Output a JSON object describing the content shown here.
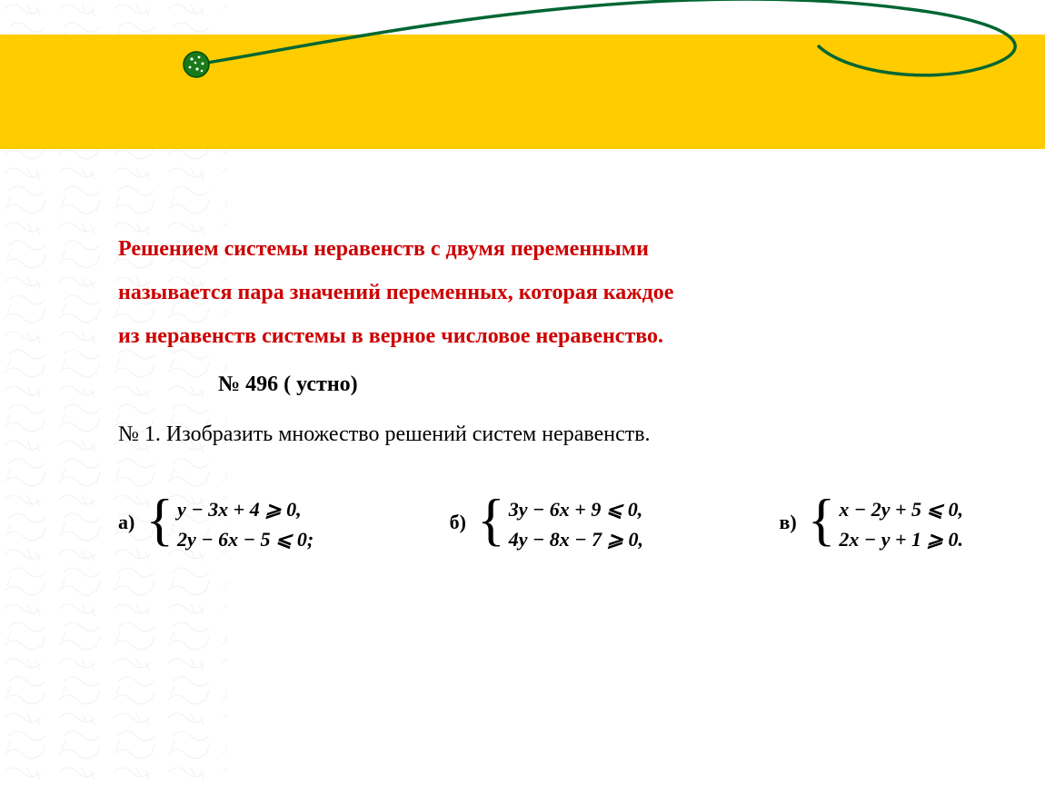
{
  "colors": {
    "yellow_band": "#ffcc00",
    "curve_stroke": "#006633",
    "dot_fill": "#1a7a1a",
    "dot_border": "#004d00",
    "red_text": "#cc0000",
    "black_text": "#000000",
    "bg_pattern": "#888888"
  },
  "typography": {
    "red_text_size": 24,
    "exercise_ref_size": 24,
    "task_text_size": 24,
    "problem_label_size": 22,
    "problem_line_size": 22
  },
  "intro": {
    "line1": "Решением системы неравенств с двумя переменными",
    "line2": "называется пара значений переменных, которая каждое",
    "line3": "из неравенств системы в верное числовое неравенство."
  },
  "exercise_ref": "№ 496 ( устно)",
  "task": "№ 1. Изобразить множество  решений систем неравенств.",
  "problems": {
    "a": {
      "label": "а)",
      "line1": "y − 3x + 4 ⩾ 0,",
      "line2": "2y − 6x − 5 ⩽ 0;"
    },
    "b": {
      "label": "б)",
      "line1": "3y − 6x + 9 ⩽ 0,",
      "line2": "4y − 8x − 7 ⩾ 0,"
    },
    "v": {
      "label": "в)",
      "line1": "x − 2y + 5 ⩽ 0,",
      "line2": "2x − y + 1 ⩾ 0."
    }
  }
}
